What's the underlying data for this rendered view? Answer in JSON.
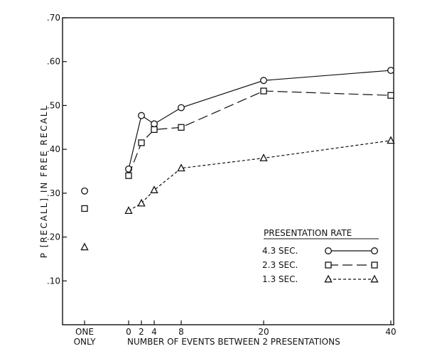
{
  "chart_data": {
    "type": "line",
    "ylabel": "P [RECALL] IN FREE RECALL",
    "xlabel": "NUMBER OF EVENTS BETWEEN 2 PRESENTATIONS",
    "ylim": [
      0,
      0.7
    ],
    "yticks": [
      ".10",
      ".20",
      ".30",
      ".40",
      ".50",
      ".60",
      ".70"
    ],
    "yticks_values": [
      0.1,
      0.2,
      0.3,
      0.4,
      0.5,
      0.6,
      0.7
    ],
    "xticks": [
      "0",
      "2",
      "4",
      "8",
      "20",
      "40"
    ],
    "xticks_values": [
      0,
      2,
      4,
      8,
      20,
      40
    ],
    "one_only_label": [
      "ONE",
      "ONLY"
    ],
    "x": [
      0,
      2,
      4,
      8,
      20,
      40
    ],
    "legend_title": "PRESENTATION RATE",
    "legend_position": "bottom-right",
    "series": [
      {
        "name": "4.3 SEC.",
        "marker": "circle",
        "dash": "solid",
        "values": [
          0.355,
          0.477,
          0.458,
          0.495,
          0.557,
          0.58
        ],
        "one_only": 0.305
      },
      {
        "name": "2.3 SEC.",
        "marker": "square",
        "dash": "long-dash",
        "values": [
          0.34,
          0.415,
          0.445,
          0.45,
          0.533,
          0.523
        ],
        "one_only": 0.265
      },
      {
        "name": "1.3 SEC.",
        "marker": "triangle",
        "dash": "short-dash",
        "values": [
          0.26,
          0.277,
          0.307,
          0.357,
          0.38,
          0.42
        ],
        "one_only": 0.177
      }
    ]
  }
}
